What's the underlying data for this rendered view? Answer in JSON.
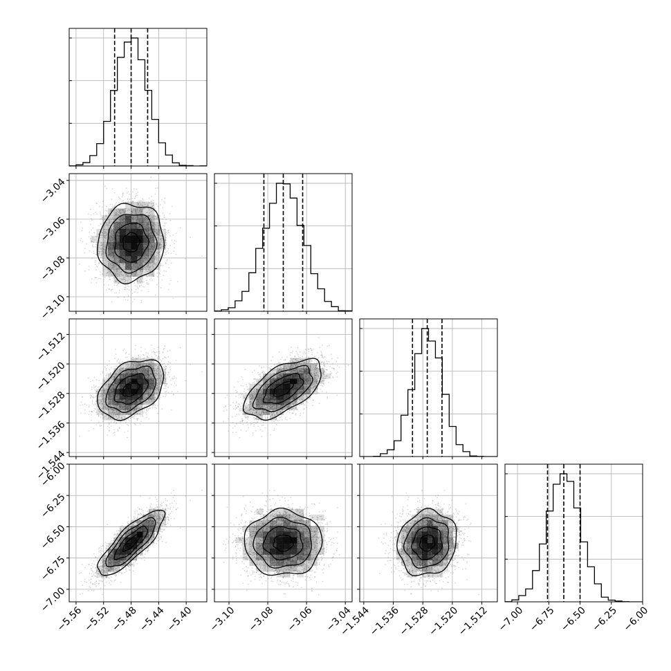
{
  "chart_data": {
    "type": "corner",
    "title": "",
    "grid": true,
    "colors": {
      "line": "#000000",
      "grid": "#b0b0b0",
      "scatter": "#8c8c8c",
      "fill": "#000000"
    },
    "parameters": [
      {
        "mean": -5.48,
        "sd": 0.024,
        "lo": -5.57,
        "hi": -5.37,
        "ticks": [
          "−5.56",
          "−5.52",
          "−5.48",
          "−5.44",
          "−5.40"
        ],
        "tick_values": [
          -5.56,
          -5.52,
          -5.48,
          -5.44,
          -5.4
        ],
        "quantiles": [
          -5.504,
          -5.48,
          -5.456
        ]
      },
      {
        "mean": -3.072,
        "sd": 0.01,
        "lo": -3.1075,
        "hi": -3.0365,
        "ticks": [
          "−3.04",
          "−3.06",
          "−3.08",
          "−3.10"
        ],
        "tick_values": [
          -3.04,
          -3.06,
          -3.08,
          -3.1
        ],
        "quantiles": [
          -3.082,
          -3.072,
          -3.062
        ]
      },
      {
        "mean": -1.5268,
        "sd": 0.004,
        "lo": -1.5451,
        "hi": -1.5078,
        "ticks": [
          "−1.512",
          "−1.520",
          "−1.528",
          "−1.536",
          "−1.544"
        ],
        "tick_values": [
          -1.512,
          -1.52,
          -1.528,
          -1.536,
          -1.544
        ],
        "quantiles": [
          -1.5308,
          -1.5268,
          -1.5228
        ]
      },
      {
        "mean": -6.63,
        "sd": 0.13,
        "lo": -7.1,
        "hi": -6.0,
        "ticks": [
          "−6.00",
          "−6.25",
          "−6.50",
          "−6.75",
          "−7.00"
        ],
        "tick_values": [
          -6.0,
          -6.25,
          -6.5,
          -6.75,
          -7.0
        ],
        "quantiles": [
          -6.76,
          -6.63,
          -6.5
        ]
      }
    ],
    "x_tick_labels": [
      [
        "−5.56",
        "−5.52",
        "−5.48",
        "−5.44",
        "−5.40"
      ],
      [
        "−3.10",
        "−3.08",
        "−3.06",
        "−3.04"
      ],
      [
        "−1.544",
        "−1.536",
        "−1.528",
        "−1.520",
        "−1.512"
      ],
      [
        "−7.00",
        "−6.75",
        "−6.50",
        "−6.25",
        "−6.00"
      ]
    ],
    "correlations": [
      [
        1.0,
        0.05,
        0.4,
        0.82
      ],
      [
        0.05,
        1.0,
        0.58,
        0.0
      ],
      [
        0.4,
        0.58,
        1.0,
        0.1
      ],
      [
        0.82,
        0.0,
        0.1,
        1.0
      ]
    ],
    "n_samples": 6000,
    "hist_bins": 20
  }
}
